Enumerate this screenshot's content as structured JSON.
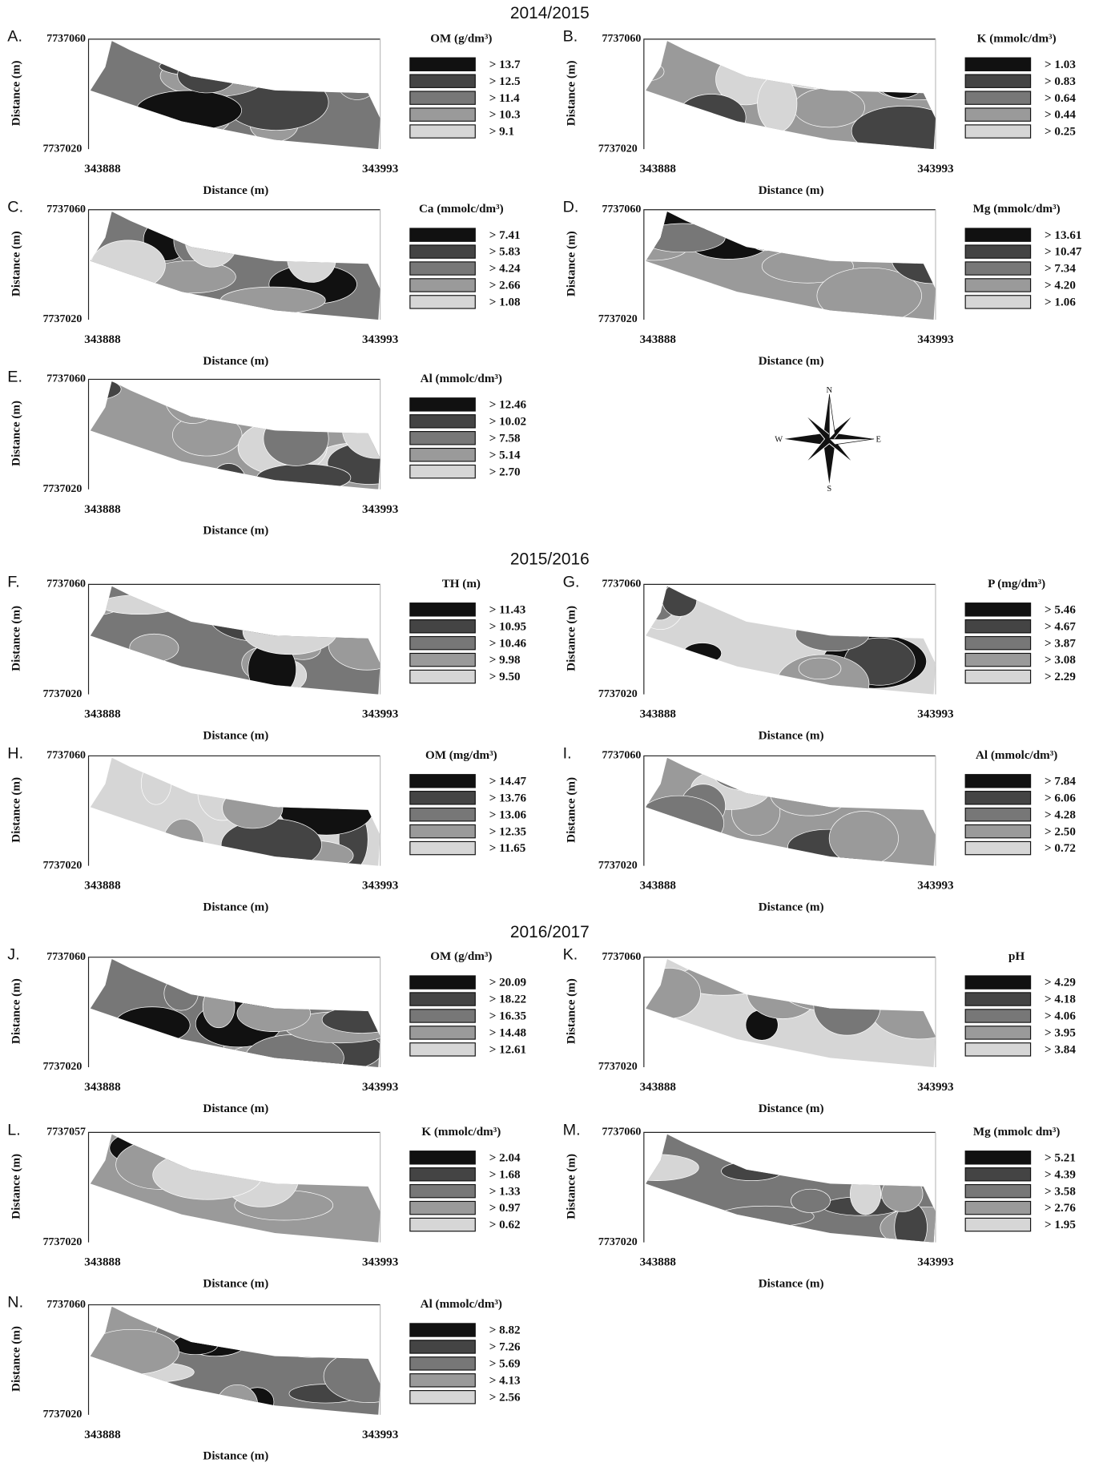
{
  "sections": [
    {
      "title": "2014/2015"
    },
    {
      "title": "2015/2016"
    },
    {
      "title": "2016/2017"
    }
  ],
  "compass": {
    "n": "N",
    "e": "E",
    "s": "S",
    "w": "W"
  },
  "panels": [
    {
      "letter": "A.",
      "y_top": "7737060",
      "y_bottom": "7737020",
      "y_title": "Distance (m)",
      "x_left": "343888",
      "x_right": "343993",
      "x_title": "Distance (m)",
      "legend_title": "OM (g/dm³)",
      "legend": [
        "> 13.7",
        "> 12.5",
        "> 11.4",
        "> 10.3",
        "> 9.1"
      ]
    },
    {
      "letter": "B.",
      "y_top": "7737060",
      "y_bottom": "7737020",
      "y_title": "Distance (m)",
      "x_left": "343888",
      "x_right": "343993",
      "x_title": "Distance (m)",
      "legend_title": "K (mmolc/dm³)",
      "legend": [
        "> 1.03",
        "> 0.83",
        "> 0.64",
        "> 0.44",
        "> 0.25"
      ]
    },
    {
      "letter": "C.",
      "y_top": "7737060",
      "y_bottom": "7737020",
      "y_title": "Distance (m)",
      "x_left": "343888",
      "x_right": "343993",
      "x_title": "Distance (m)",
      "legend_title": "Ca (mmolc/dm³)",
      "legend": [
        "> 7.41",
        "> 5.83",
        "> 4.24",
        "> 2.66",
        "> 1.08"
      ]
    },
    {
      "letter": "D.",
      "y_top": "7737060",
      "y_bottom": "7737020",
      "y_title": "Distance (m)",
      "x_left": "343888",
      "x_right": "343993",
      "x_title": "Distance (m)",
      "legend_title": "Mg (mmolc/dm³)",
      "legend": [
        "> 13.61",
        "> 10.47",
        "> 7.34",
        "> 4.20",
        "> 1.06"
      ]
    },
    {
      "letter": "E.",
      "y_top": "7737060",
      "y_bottom": "7737020",
      "y_title": "Distance (m)",
      "x_left": "343888",
      "x_right": "343993",
      "x_title": "Distance (m)",
      "legend_title": "Al (mmolc/dm³)",
      "legend": [
        "> 12.46",
        "> 10.02",
        "> 7.58",
        "> 5.14",
        "> 2.70"
      ]
    },
    {
      "letter": "F.",
      "y_top": "7737060",
      "y_bottom": "7737020",
      "y_title": "Distance (m)",
      "x_left": "343888",
      "x_right": "343993",
      "x_title": "Distance (m)",
      "legend_title": "TH (m)",
      "legend": [
        "> 11.43",
        "> 10.95",
        "> 10.46",
        "> 9.98",
        "> 9.50"
      ]
    },
    {
      "letter": "G.",
      "y_top": "7737060",
      "y_bottom": "7737020",
      "y_title": "Distance (m)",
      "x_left": "343888",
      "x_right": "343993",
      "x_title": "Distance (m)",
      "legend_title": "P (mg/dm³)",
      "legend": [
        "> 5.46",
        "> 4.67",
        "> 3.87",
        "> 3.08",
        "> 2.29"
      ]
    },
    {
      "letter": "H.",
      "y_top": "7737060",
      "y_bottom": "7737020",
      "y_title": "Distance (m)",
      "x_left": "343888",
      "x_right": "343993",
      "x_title": "Distance (m)",
      "legend_title": "OM (mg/dm³)",
      "legend": [
        "> 14.47",
        "> 13.76",
        "> 13.06",
        "> 12.35",
        "> 11.65"
      ]
    },
    {
      "letter": "I.",
      "y_top": "7737060",
      "y_bottom": "7737020",
      "y_title": "Distance (m)",
      "x_left": "343888",
      "x_right": "343993",
      "x_title": "Distance (m)",
      "legend_title": "Al (mmolc/dm³)",
      "legend": [
        "> 7.84",
        "> 6.06",
        "> 4.28",
        "> 2.50",
        "> 0.72"
      ]
    },
    {
      "letter": "J.",
      "y_top": "7737060",
      "y_bottom": "7737020",
      "y_title": "Distance (m)",
      "x_left": "343888",
      "x_right": "343993",
      "x_title": "Distance (m)",
      "legend_title": "OM (g/dm³)",
      "legend": [
        "> 20.09",
        "> 18.22",
        "> 16.35",
        "> 14.48",
        "> 12.61"
      ]
    },
    {
      "letter": "K.",
      "y_top": "7737060",
      "y_bottom": "7737020",
      "y_title": "Distance (m)",
      "x_left": "343888",
      "x_right": "343993",
      "x_title": "Distance (m)",
      "legend_title": "pH",
      "legend": [
        "> 4.29",
        "> 4.18",
        "> 4.06",
        "> 3.95",
        "> 3.84"
      ]
    },
    {
      "letter": "L.",
      "y_top": "7737057",
      "y_bottom": "7737020",
      "y_title": "Distance (m)",
      "x_left": "343888",
      "x_right": "343993",
      "x_title": "Distance (m)",
      "legend_title": "K (mmolc/dm³)",
      "legend": [
        "> 2.04",
        "> 1.68",
        "> 1.33",
        "> 0.97",
        "> 0.62"
      ]
    },
    {
      "letter": "M.",
      "y_top": "7737060",
      "y_bottom": "7737020",
      "y_title": "Distance (m)",
      "x_left": "343888",
      "x_right": "343993",
      "x_title": "Distance (m)",
      "legend_title": "Mg (mmolc dm³)",
      "legend": [
        "> 5.21",
        "> 4.39",
        "> 3.58",
        "> 2.76",
        "> 1.95"
      ]
    },
    {
      "letter": "N.",
      "y_top": "7737060",
      "y_bottom": "7737020",
      "y_title": "Distance (m)",
      "x_left": "343888",
      "x_right": "343993",
      "x_title": "Distance (m)",
      "legend_title": "Al (mmolc/dm³)",
      "legend": [
        "> 8.82",
        "> 7.26",
        "> 5.69",
        "> 4.13",
        "> 2.56"
      ]
    }
  ]
}
